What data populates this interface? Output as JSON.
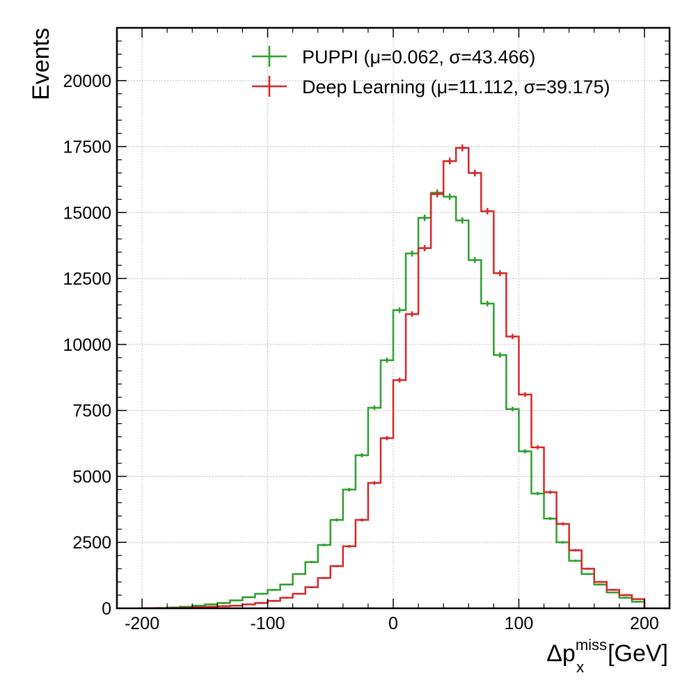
{
  "chart_data": {
    "type": "histogram",
    "xlabel_main": "Δp",
    "xlabel_sub": "x",
    "xlabel_sup": "miss",
    "xlabel_unit": "[GeV]",
    "ylabel": "Events",
    "xlim": [
      -220,
      220
    ],
    "ylim": [
      0,
      22000
    ],
    "xticks": [
      -200,
      -100,
      0,
      100,
      200
    ],
    "xtick_labels": [
      "-200",
      "-100",
      "0",
      "100",
      "200"
    ],
    "yticks": [
      0,
      2500,
      5000,
      7500,
      10000,
      12500,
      15000,
      17500,
      20000
    ],
    "ytick_labels": [
      "0",
      "2500",
      "5000",
      "7500",
      "10000",
      "12500",
      "15000",
      "17500",
      "20000"
    ],
    "grid": true,
    "legend_position": "top-right",
    "bin_edges": [
      -200,
      -190,
      -180,
      -170,
      -160,
      -150,
      -140,
      -130,
      -120,
      -110,
      -100,
      -90,
      -80,
      -70,
      -60,
      -50,
      -40,
      -30,
      -20,
      -10,
      0,
      10,
      20,
      30,
      40,
      50,
      60,
      70,
      80,
      90,
      100,
      110,
      120,
      130,
      140,
      150,
      160,
      170,
      180,
      190,
      200
    ],
    "series": [
      {
        "name": "PUPPI (μ=0.062, σ=43.466)",
        "color": "#2ca02c",
        "values": [
          5,
          10,
          30,
          60,
          100,
          150,
          200,
          300,
          420,
          550,
          700,
          900,
          1300,
          1750,
          2400,
          3350,
          4500,
          5800,
          7600,
          9400,
          11300,
          13450,
          14800,
          15750,
          15600,
          14700,
          13200,
          11550,
          9600,
          7550,
          5950,
          4350,
          3400,
          2500,
          1800,
          1300,
          900,
          600,
          400,
          250
        ]
      },
      {
        "name": "Deep Learning (μ=11.112, σ=39.175)",
        "color": "#d62728",
        "values": [
          5,
          5,
          10,
          20,
          40,
          60,
          80,
          100,
          150,
          200,
          280,
          400,
          550,
          800,
          1150,
          1600,
          2350,
          3350,
          4750,
          6450,
          8650,
          11150,
          13650,
          15700,
          16950,
          17450,
          16500,
          15050,
          12700,
          10300,
          8100,
          6100,
          4400,
          3200,
          2200,
          1500,
          1000,
          700,
          500,
          350
        ]
      }
    ]
  }
}
